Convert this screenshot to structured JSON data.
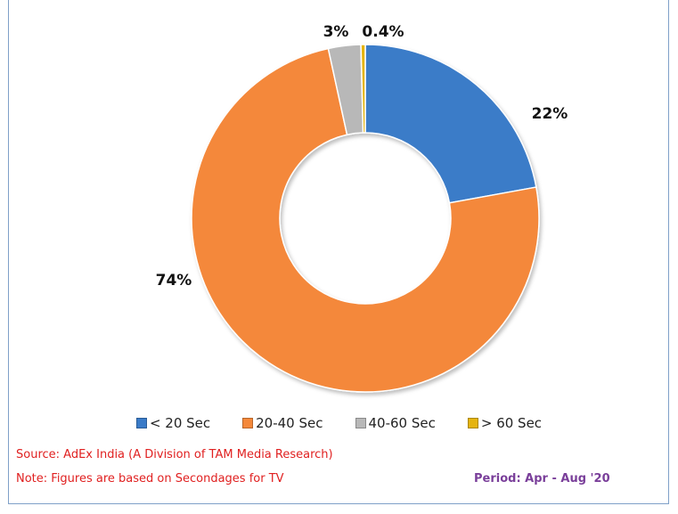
{
  "chart_data": {
    "type": "pie",
    "style": "donut",
    "title": "",
    "categories": [
      "< 20 Sec",
      "20-40 Sec",
      "40-60 Sec",
      "> 60 Sec"
    ],
    "values": [
      22,
      74,
      3,
      0.4
    ],
    "value_labels": [
      "22%",
      "74%",
      "3%",
      "0.4%"
    ],
    "unit": "%",
    "colors": [
      "#3a7bc8",
      "#f4883a",
      "#b8b8b8",
      "#e5b410"
    ],
    "legend_position": "bottom"
  },
  "footer": {
    "source": "Source: AdEx India (A Division of TAM Media Research)",
    "note": "Note: Figures are based on Secondages for TV",
    "period": "Period: Apr - Aug '20",
    "source_color": "#e02020",
    "period_color": "#7a3f9a"
  }
}
